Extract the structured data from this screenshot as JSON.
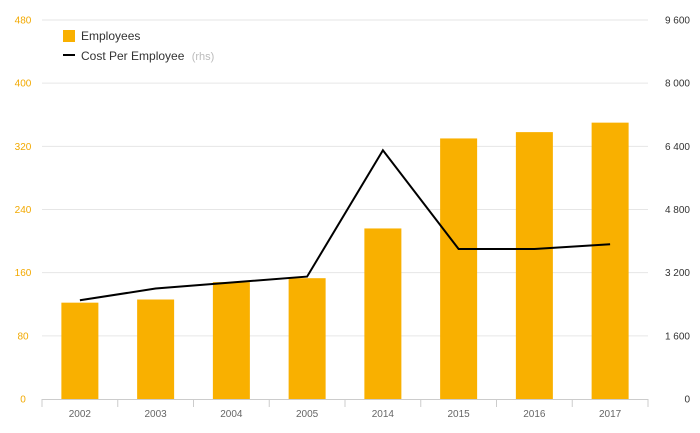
{
  "chart_data": {
    "type": "bar+line",
    "categories": [
      "2002",
      "2003",
      "2004",
      "2005",
      "2014",
      "2015",
      "2016",
      "2017"
    ],
    "series": [
      {
        "name": "Employees",
        "type": "bar",
        "axis": "left",
        "values": [
          122,
          126,
          148,
          153,
          216,
          330,
          338,
          350
        ]
      },
      {
        "name": "Cost Per Employee",
        "name_suffix": "(rhs)",
        "type": "line",
        "axis": "right",
        "values": [
          2500,
          2800,
          2950,
          3100,
          6300,
          3800,
          3800,
          3920
        ]
      }
    ],
    "y_left": {
      "ylim": [
        0,
        480
      ],
      "ticks": [
        "0",
        "80",
        "160",
        "240",
        "320",
        "400",
        "480"
      ]
    },
    "y_right": {
      "ylim": [
        0,
        9600
      ],
      "ticks": [
        "0",
        "1 600",
        "3 200",
        "4 800",
        "6 400",
        "8 000",
        "9 600"
      ]
    },
    "grid": true,
    "legend_position": "top-left",
    "colors": {
      "bar": "#f9b000",
      "line": "#000000",
      "grid": "#e6e6e6",
      "left_axis_text": "#f2a900"
    }
  }
}
